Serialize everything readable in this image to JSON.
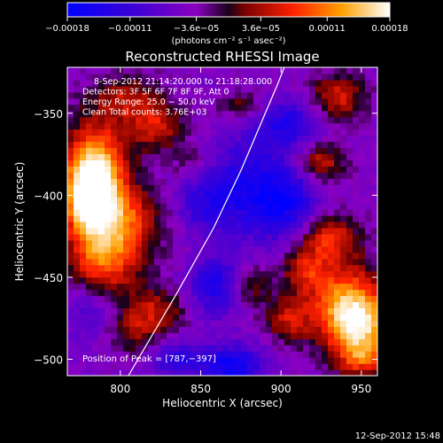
{
  "chart_data": {
    "type": "heatmap",
    "title": "Reconstructed RHESSI Image",
    "xlabel": "Heliocentric X (arcsec)",
    "ylabel": "Heliocentric Y (arcsec)",
    "xlim": [
      767,
      960
    ],
    "ylim": [
      -510,
      -322
    ],
    "x_ticks": [
      800,
      850,
      900,
      950
    ],
    "x_tick_labels": [
      "800",
      "850",
      "900",
      "950"
    ],
    "y_ticks": [
      -500,
      -450,
      -400,
      -350
    ],
    "y_tick_labels": [
      "−500",
      "−450",
      "−400",
      "−350"
    ],
    "colorbar": {
      "range": [
        -0.00018,
        0.00018
      ],
      "tick_values": [
        -0.00018,
        -0.00011,
        -3.6e-05,
        3.6e-05,
        0.00011,
        0.00018
      ],
      "tick_labels": [
        "−0.00018",
        "−0.00011",
        "−3.6e−05",
        "3.6e−05",
        "0.00011",
        "0.00018"
      ],
      "unit_label": "(photons cm⁻² s⁻¹ asec⁻²)"
    },
    "info_lines": [
      "8-Sep-2012 21:14:20.000 to 21:18:28.000",
      "Detectors: 3F 5F 6F 7F 8F 9F, Att 0",
      "Energy Range: 25.0 − 50.0 keV",
      "Clean    Total counts: 3.76E+03"
    ],
    "peak_label": "Position of Peak = [787,−397]",
    "footer": "12-Sep-2012 15:48",
    "limb_curve": [
      [
        805,
        -510
      ],
      [
        835,
        -460
      ],
      [
        858,
        -420
      ],
      [
        875,
        -385
      ],
      [
        888,
        -355
      ],
      [
        898,
        -332
      ],
      [
        902,
        -322
      ]
    ],
    "grid": false,
    "legend": "none",
    "blobs": [
      {
        "x": 785,
        "y": -385,
        "v": 0.00018,
        "rx": 14,
        "ry": 22
      },
      {
        "x": 800,
        "y": -415,
        "v": 0.00012,
        "rx": 18,
        "ry": 14
      },
      {
        "x": 790,
        "y": -440,
        "v": 0.00013,
        "rx": 16,
        "ry": 14
      },
      {
        "x": 780,
        "y": -400,
        "v": 0.00015,
        "rx": 10,
        "ry": 16
      },
      {
        "x": 822,
        "y": -358,
        "v": 0.0001,
        "rx": 12,
        "ry": 10
      },
      {
        "x": 805,
        "y": -340,
        "v": 8e-05,
        "rx": 14,
        "ry": 9
      },
      {
        "x": 820,
        "y": -470,
        "v": 9e-05,
        "rx": 14,
        "ry": 10
      },
      {
        "x": 808,
        "y": -485,
        "v": 6e-05,
        "rx": 10,
        "ry": 8
      },
      {
        "x": 845,
        "y": -380,
        "v": 4e-05,
        "rx": 10,
        "ry": 8
      },
      {
        "x": 925,
        "y": -380,
        "v": 0.0001,
        "rx": 10,
        "ry": 8
      },
      {
        "x": 930,
        "y": -425,
        "v": 0.00011,
        "rx": 12,
        "ry": 10
      },
      {
        "x": 915,
        "y": -445,
        "v": 9e-05,
        "rx": 10,
        "ry": 10
      },
      {
        "x": 940,
        "y": -465,
        "v": 0.00014,
        "rx": 16,
        "ry": 18
      },
      {
        "x": 950,
        "y": -480,
        "v": 0.00015,
        "rx": 14,
        "ry": 14
      },
      {
        "x": 905,
        "y": -475,
        "v": 9e-05,
        "rx": 10,
        "ry": 10
      },
      {
        "x": 880,
        "y": -455,
        "v": 7e-05,
        "rx": 9,
        "ry": 9
      },
      {
        "x": 935,
        "y": -340,
        "v": 0.0001,
        "rx": 12,
        "ry": 10
      },
      {
        "x": 950,
        "y": -500,
        "v": 9e-05,
        "rx": 10,
        "ry": 8
      },
      {
        "x": 875,
        "y": -345,
        "v": 6e-05,
        "rx": 10,
        "ry": 6
      },
      {
        "x": 880,
        "y": -395,
        "v": -0.0001,
        "rx": 20,
        "ry": 22
      },
      {
        "x": 905,
        "y": -405,
        "v": -8e-05,
        "rx": 14,
        "ry": 14
      },
      {
        "x": 850,
        "y": -405,
        "v": -6e-05,
        "rx": 12,
        "ry": 12
      },
      {
        "x": 860,
        "y": -455,
        "v": -0.0001,
        "rx": 12,
        "ry": 12
      },
      {
        "x": 870,
        "y": -505,
        "v": -0.00012,
        "rx": 14,
        "ry": 10
      },
      {
        "x": 835,
        "y": -500,
        "v": -8e-05,
        "rx": 12,
        "ry": 8
      },
      {
        "x": 905,
        "y": -355,
        "v": -9e-05,
        "rx": 14,
        "ry": 10
      },
      {
        "x": 780,
        "y": -470,
        "v": -5e-05,
        "rx": 10,
        "ry": 12
      }
    ]
  }
}
